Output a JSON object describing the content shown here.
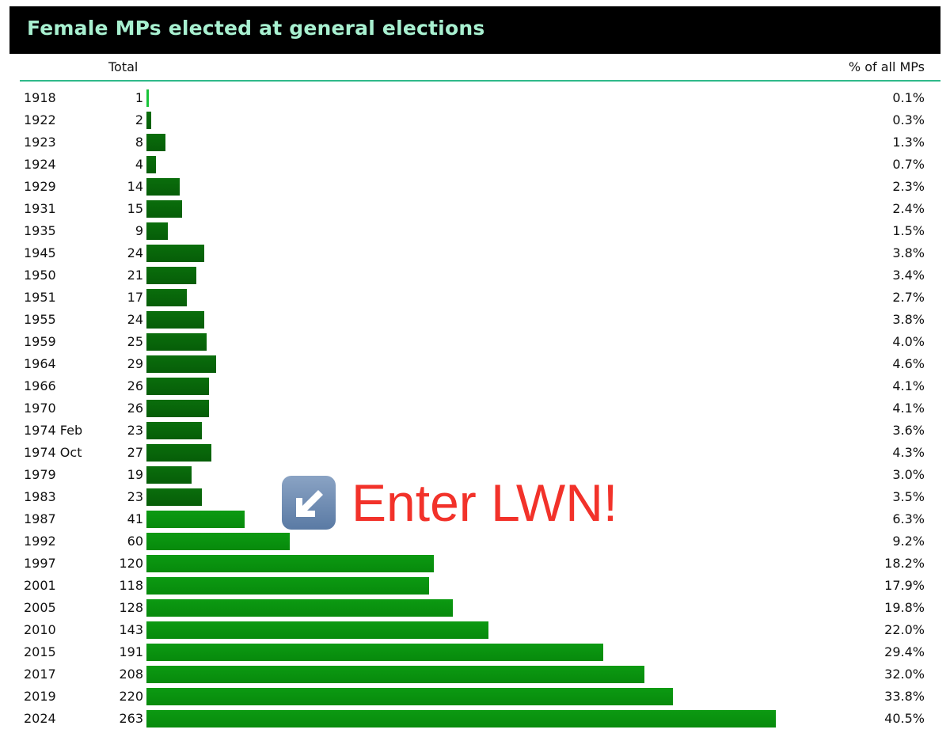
{
  "header": {
    "title": "Female MPs elected at general elections"
  },
  "columns": {
    "total": "Total",
    "pct": "% of all MPs"
  },
  "annotation": {
    "icon": "arrow-down-left-icon",
    "text": "Enter LWN!",
    "color": "#f2322a"
  },
  "chart_data": {
    "type": "bar",
    "orientation": "horizontal",
    "title": "Female MPs elected at general elections",
    "categories": [
      "1918",
      "1922",
      "1923",
      "1924",
      "1929",
      "1931",
      "1935",
      "1945",
      "1950",
      "1951",
      "1955",
      "1959",
      "1964",
      "1966",
      "1970",
      "1974 Feb",
      "1974 Oct",
      "1979",
      "1983",
      "1987",
      "1992",
      "1997",
      "2001",
      "2005",
      "2010",
      "2015",
      "2017",
      "2019",
      "2024"
    ],
    "values": [
      1,
      2,
      8,
      4,
      14,
      15,
      9,
      24,
      21,
      17,
      24,
      25,
      29,
      26,
      26,
      23,
      27,
      19,
      23,
      41,
      60,
      120,
      118,
      128,
      143,
      191,
      208,
      220,
      263
    ],
    "pct_labels": [
      "0.1%",
      "0.3%",
      "1.3%",
      "0.7%",
      "2.3%",
      "2.4%",
      "1.5%",
      "3.8%",
      "3.4%",
      "2.7%",
      "3.8%",
      "4.0%",
      "4.6%",
      "4.1%",
      "4.1%",
      "3.6%",
      "4.3%",
      "3.0%",
      "3.5%",
      "6.3%",
      "9.2%",
      "18.2%",
      "17.9%",
      "19.8%",
      "22.0%",
      "29.4%",
      "32.0%",
      "33.8%",
      "40.5%"
    ],
    "bar_color": "#0e7d10",
    "grid": false
  }
}
